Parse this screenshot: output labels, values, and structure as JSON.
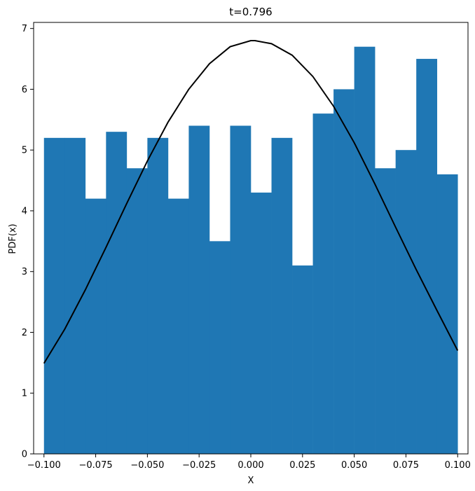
{
  "chart_data": {
    "type": "bar",
    "title": "t=0.796",
    "xlabel": "X",
    "ylabel": "PDF(x)",
    "xlim": [
      -0.105,
      0.105
    ],
    "ylim": [
      0,
      7.1
    ],
    "grid": false,
    "histogram": {
      "bin_edges": [
        -0.1,
        -0.09,
        -0.08,
        -0.07,
        -0.06,
        -0.05,
        -0.04,
        -0.03,
        -0.02,
        -0.01,
        0.0,
        0.01,
        0.02,
        0.03,
        0.04,
        0.05,
        0.06,
        0.07,
        0.08,
        0.09,
        0.1
      ],
      "values": [
        5.2,
        5.2,
        4.2,
        5.3,
        4.7,
        5.2,
        4.2,
        5.4,
        3.5,
        5.4,
        4.3,
        5.2,
        3.1,
        5.6,
        6.0,
        6.7,
        4.7,
        5.0,
        6.5,
        4.6
      ],
      "color": "#1f77b4"
    },
    "curve": {
      "type": "line",
      "color": "#000000",
      "x": [
        -0.1,
        -0.09,
        -0.08,
        -0.07,
        -0.06,
        -0.05,
        -0.04,
        -0.03,
        -0.02,
        -0.01,
        0.0,
        0.002,
        0.01,
        0.02,
        0.03,
        0.04,
        0.05,
        0.06,
        0.07,
        0.08,
        0.09,
        0.1
      ],
      "y": [
        1.49,
        2.05,
        2.7,
        3.4,
        4.12,
        4.82,
        5.46,
        6.0,
        6.42,
        6.7,
        6.8,
        6.8,
        6.75,
        6.56,
        6.21,
        5.72,
        5.12,
        4.44,
        3.73,
        3.03,
        2.36,
        1.7
      ]
    },
    "xticks": [
      -0.1,
      -0.075,
      -0.05,
      -0.025,
      0.0,
      0.025,
      0.05,
      0.075,
      0.1
    ],
    "xtick_labels": [
      "−0.100",
      "−0.075",
      "−0.050",
      "−0.025",
      "0.000",
      "0.025",
      "0.050",
      "0.075",
      "0.100"
    ],
    "yticks": [
      0,
      1,
      2,
      3,
      4,
      5,
      6,
      7
    ],
    "ytick_labels": [
      "0",
      "1",
      "2",
      "3",
      "4",
      "5",
      "6",
      "7"
    ]
  }
}
